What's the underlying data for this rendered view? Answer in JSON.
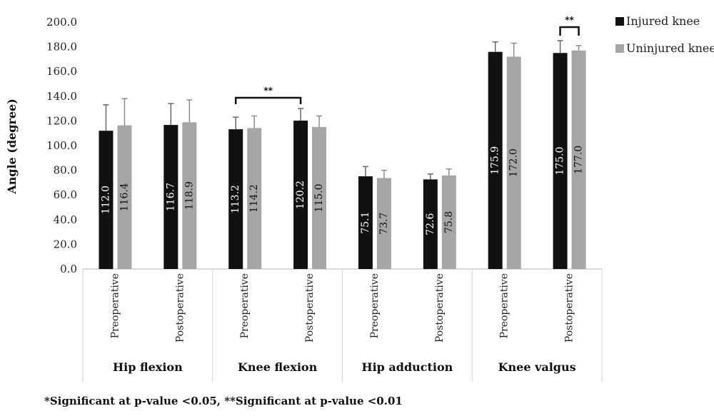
{
  "chart_data": {
    "type": "bar",
    "ylabel": "Angle (degree)",
    "ylim": [
      0,
      200
    ],
    "yticks": [
      "0.0",
      "20.0",
      "40.0",
      "60.0",
      "80.0",
      "100.0",
      "120.0",
      "140.0",
      "160.0",
      "180.0",
      "200.0"
    ],
    "groups": [
      "Hip flexion",
      "Knee flexion",
      "Hip adduction",
      "Knee valgus"
    ],
    "categories": [
      "Preoperative",
      "Postoperative",
      "Preoperative",
      "Postoperative",
      "Preoperative",
      "Postoperative",
      "Preoperative",
      "Postoperative"
    ],
    "series": [
      {
        "name": "Injured knee",
        "color": "#111111",
        "values": [
          112.0,
          116.7,
          113.2,
          120.2,
          75.1,
          72.6,
          175.9,
          175.0
        ],
        "labels": [
          "112.0",
          "116.7",
          "113.2",
          "120.2",
          "75.1",
          "72.6",
          "175.9",
          "175.0"
        ],
        "error_top": [
          133,
          134,
          123,
          130,
          83,
          77,
          184,
          185
        ]
      },
      {
        "name": "Uninjured knee",
        "color": "#a6a6a6",
        "values": [
          116.4,
          118.9,
          114.2,
          115.0,
          73.7,
          75.8,
          172.0,
          177.0
        ],
        "labels": [
          "116.4",
          "118.9",
          "114.2",
          "115.0",
          "73.7",
          "75.8",
          "172.0",
          "177.0"
        ],
        "error_top": [
          138,
          137,
          124,
          124,
          80,
          81,
          183,
          181
        ]
      }
    ],
    "significance": [
      {
        "label": "**",
        "from": "Knee flexion Preoperative Injured knee",
        "to": "Knee flexion Postoperative Injured knee"
      },
      {
        "label": "**",
        "from": "Knee valgus Postoperative Injured knee",
        "to": "Knee valgus Postoperative Uninjured knee"
      }
    ],
    "legend": "right",
    "grid": false
  },
  "footnote": "*Significant at p-value <0.05, **Significant at p-value <0.01"
}
